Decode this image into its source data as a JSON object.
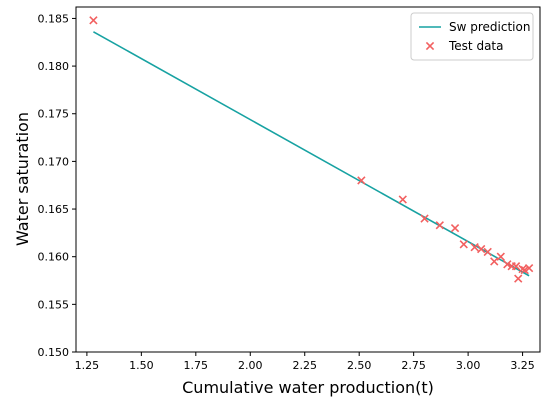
{
  "chart_data": {
    "type": "scatter",
    "title": "",
    "xlabel": "Cumulative water production(t)",
    "ylabel": "Water saturation",
    "xlim": [
      1.2,
      3.33
    ],
    "ylim": [
      0.15,
      0.1862
    ],
    "x_ticks": [
      1.25,
      1.5,
      1.75,
      2.0,
      2.25,
      2.5,
      2.75,
      3.0,
      3.25
    ],
    "x_tick_labels": [
      "1.25",
      "1.50",
      "1.75",
      "2.00",
      "2.25",
      "2.50",
      "2.75",
      "3.00",
      "3.25"
    ],
    "y_ticks": [
      0.15,
      0.155,
      0.16,
      0.165,
      0.17,
      0.175,
      0.18,
      0.185
    ],
    "y_tick_labels": [
      "0.150",
      "0.155",
      "0.160",
      "0.165",
      "0.170",
      "0.175",
      "0.180",
      "0.185"
    ],
    "grid": false,
    "legend_position": "top-right",
    "series": [
      {
        "name": "Sw prediction",
        "kind": "line",
        "color": "#17a2a2",
        "x": [
          1.28,
          3.28
        ],
        "y": [
          0.1836,
          0.158
        ]
      },
      {
        "name": "Test data",
        "kind": "scatter",
        "marker": "x",
        "color": "#f26060",
        "x": [
          1.28,
          2.51,
          2.7,
          2.8,
          2.87,
          2.94,
          2.98,
          3.03,
          3.06,
          3.09,
          3.12,
          3.15,
          3.18,
          3.2,
          3.22,
          3.23,
          3.25,
          3.26,
          3.28
        ],
        "y": [
          0.1848,
          0.168,
          0.166,
          0.164,
          0.1633,
          0.163,
          0.1613,
          0.161,
          0.1608,
          0.1605,
          0.1595,
          0.16,
          0.1592,
          0.159,
          0.159,
          0.1577,
          0.1587,
          0.1586,
          0.1588
        ]
      }
    ]
  }
}
